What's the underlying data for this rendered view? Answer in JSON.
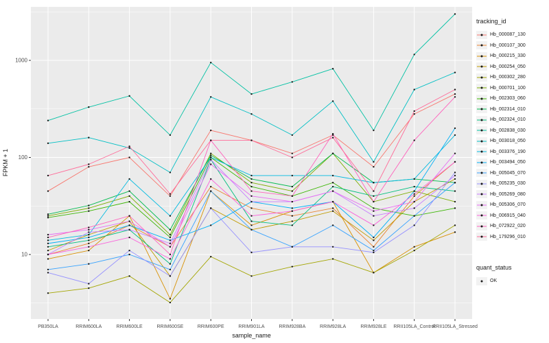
{
  "colors": {
    "plot_bg": "#EBEBEB",
    "grid": "#FFFFFF",
    "tick_text": "#4D4D4D",
    "axis_text": "#1A1A1A",
    "point": "#1A1A1A",
    "legend_key_bg": "#F2F2F2"
  },
  "chart_data": {
    "type": "line",
    "title": "",
    "xlabel": "sample_name",
    "ylabel": "FPKM + 1",
    "y_scale": "log10",
    "y_ticks": [
      10,
      100,
      1000
    ],
    "y_minor": [
      3.162,
      31.62,
      316.2,
      3162
    ],
    "ylim": [
      3,
      3500
    ],
    "grid": true,
    "legend_position": "right",
    "legend_title": "tracking_id",
    "categories": [
      "PB350LA",
      "RRIM600LA",
      "RRIM600LE",
      "RRIM600SE",
      "RRIM600PE",
      "RRIM901LA",
      "RRIM928BA",
      "RRIM928LA",
      "RRIM928LE",
      "RRII105LA_Control",
      "RRII105LA_Stressed"
    ],
    "series": [
      {
        "name": "Hb_000087_130",
        "color": "#F8766D",
        "values": [
          45,
          80,
          100,
          40,
          190,
          150,
          110,
          170,
          80,
          280,
          450
        ]
      },
      {
        "name": "Hb_000107_300",
        "color": "#EA8331",
        "values": [
          10,
          13,
          20,
          12,
          50,
          30,
          25,
          30,
          12,
          40,
          90
        ]
      },
      {
        "name": "Hb_000215_330",
        "color": "#D89000",
        "values": [
          9,
          11,
          25,
          3.5,
          45,
          20,
          28,
          35,
          6.5,
          12,
          17
        ]
      },
      {
        "name": "Hb_000254_050",
        "color": "#C09B00",
        "values": [
          11,
          16,
          22,
          6,
          30,
          18,
          22,
          28,
          14,
          35,
          60
        ]
      },
      {
        "name": "Hb_000302_280",
        "color": "#A3A500",
        "values": [
          4,
          4.5,
          6,
          3.2,
          9.5,
          6,
          7.5,
          9,
          6.5,
          11,
          20
        ]
      },
      {
        "name": "Hb_000701_100",
        "color": "#7CAE00",
        "values": [
          25,
          30,
          40,
          16,
          110,
          55,
          45,
          110,
          35,
          45,
          35
        ]
      },
      {
        "name": "Hb_002303_060",
        "color": "#39B600",
        "values": [
          24,
          28,
          35,
          15,
          100,
          50,
          40,
          55,
          30,
          25,
          30
        ]
      },
      {
        "name": "Hb_002314_010",
        "color": "#00BB4E",
        "values": [
          26,
          32,
          45,
          18,
          105,
          60,
          50,
          110,
          55,
          60,
          55
        ]
      },
      {
        "name": "Hb_002324_010",
        "color": "#00BF7D",
        "values": [
          12,
          14,
          18,
          8,
          95,
          22,
          20,
          50,
          40,
          50,
          45
        ]
      },
      {
        "name": "Hb_002838_030",
        "color": "#00C1A3",
        "values": [
          240,
          330,
          430,
          170,
          950,
          450,
          600,
          820,
          190,
          1150,
          3000
        ]
      },
      {
        "name": "Hb_003018_050",
        "color": "#00BFC4",
        "values": [
          140,
          160,
          125,
          70,
          420,
          280,
          170,
          380,
          90,
          500,
          750
        ]
      },
      {
        "name": "Hb_003376_190",
        "color": "#00BAE0",
        "values": [
          14,
          16,
          60,
          25,
          100,
          65,
          65,
          65,
          55,
          60,
          170
        ]
      },
      {
        "name": "Hb_003494_050",
        "color": "#00B0F6",
        "values": [
          13,
          15,
          20,
          14,
          20,
          35,
          30,
          35,
          15,
          45,
          200
        ]
      },
      {
        "name": "Hb_005045_070",
        "color": "#35A2FF",
        "values": [
          7,
          8,
          10,
          7,
          45,
          18,
          12,
          20,
          11,
          25,
          55
        ]
      },
      {
        "name": "Hb_005235_030",
        "color": "#9590FF",
        "values": [
          6.5,
          5,
          11,
          6,
          30,
          10.5,
          12,
          12,
          10.5,
          20,
          70
        ]
      },
      {
        "name": "Hb_005269_080",
        "color": "#C77CFF",
        "values": [
          10,
          17,
          18,
          13,
          95,
          35,
          35,
          45,
          25,
          30,
          65
        ]
      },
      {
        "name": "Hb_005306_070",
        "color": "#E76BF3",
        "values": [
          16,
          18,
          22,
          12,
          85,
          40,
          35,
          45,
          28,
          35,
          110
        ]
      },
      {
        "name": "Hb_006915_040",
        "color": "#FA62DB",
        "values": [
          10,
          12,
          15,
          9,
          60,
          25,
          28,
          35,
          20,
          42,
          90
        ]
      },
      {
        "name": "Hb_072922_020",
        "color": "#FF62BC",
        "values": [
          15,
          19,
          25,
          10,
          150,
          45,
          40,
          175,
          35,
          150,
          420
        ]
      },
      {
        "name": "Hb_179296_010",
        "color": "#FF6A98",
        "values": [
          65,
          85,
          130,
          42,
          150,
          150,
          100,
          160,
          45,
          300,
          500
        ]
      }
    ],
    "quant_status": {
      "title": "quant_status",
      "items": [
        {
          "label": "OK",
          "shape": "point"
        }
      ]
    }
  }
}
